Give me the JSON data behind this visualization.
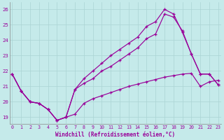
{
  "background_color": "#c5eaea",
  "line_color": "#990099",
  "grid_color": "#aad4d4",
  "xlim_min": -0.3,
  "xlim_max": 23.3,
  "ylim_min": 18.55,
  "ylim_max": 26.45,
  "xlabel": "Windchill (Refroidissement éolien,°C)",
  "ytick_vals": [
    19,
    20,
    21,
    22,
    23,
    24,
    25,
    26
  ],
  "curve1_x": [
    0,
    1,
    2,
    3,
    4,
    5,
    6,
    7,
    8,
    9,
    10,
    11,
    12,
    13,
    14,
    15,
    16,
    17,
    18,
    19,
    20,
    21,
    22,
    23
  ],
  "curve1_y": [
    21.8,
    20.7,
    20.0,
    19.9,
    19.5,
    18.8,
    19.0,
    19.2,
    19.9,
    20.2,
    20.4,
    20.6,
    20.8,
    21.0,
    21.15,
    21.3,
    21.45,
    21.6,
    21.7,
    21.8,
    21.85,
    21.0,
    21.3,
    21.4
  ],
  "curve2_x": [
    0,
    1,
    2,
    3,
    4,
    5,
    6,
    7,
    8,
    9,
    10,
    11,
    12,
    13,
    14,
    15,
    16,
    17,
    18,
    19,
    20,
    21,
    22,
    23
  ],
  "curve2_y": [
    21.8,
    20.7,
    20.0,
    19.9,
    19.5,
    18.8,
    19.0,
    20.8,
    21.5,
    22.0,
    22.5,
    23.0,
    23.4,
    23.8,
    24.2,
    24.9,
    25.2,
    26.0,
    25.7,
    24.5,
    23.1,
    21.8,
    21.8,
    21.1
  ],
  "curve3_x": [
    0,
    1,
    2,
    3,
    4,
    5,
    6,
    7,
    8,
    9,
    10,
    11,
    12,
    13,
    14,
    15,
    16,
    17,
    18,
    19,
    20,
    21,
    22,
    23
  ],
  "curve3_y": [
    21.8,
    20.7,
    20.0,
    19.9,
    19.5,
    18.8,
    19.0,
    20.8,
    21.2,
    21.5,
    22.0,
    22.3,
    22.7,
    23.1,
    23.5,
    24.1,
    24.4,
    25.7,
    25.5,
    24.6,
    23.1,
    21.8,
    21.8,
    21.1
  ]
}
